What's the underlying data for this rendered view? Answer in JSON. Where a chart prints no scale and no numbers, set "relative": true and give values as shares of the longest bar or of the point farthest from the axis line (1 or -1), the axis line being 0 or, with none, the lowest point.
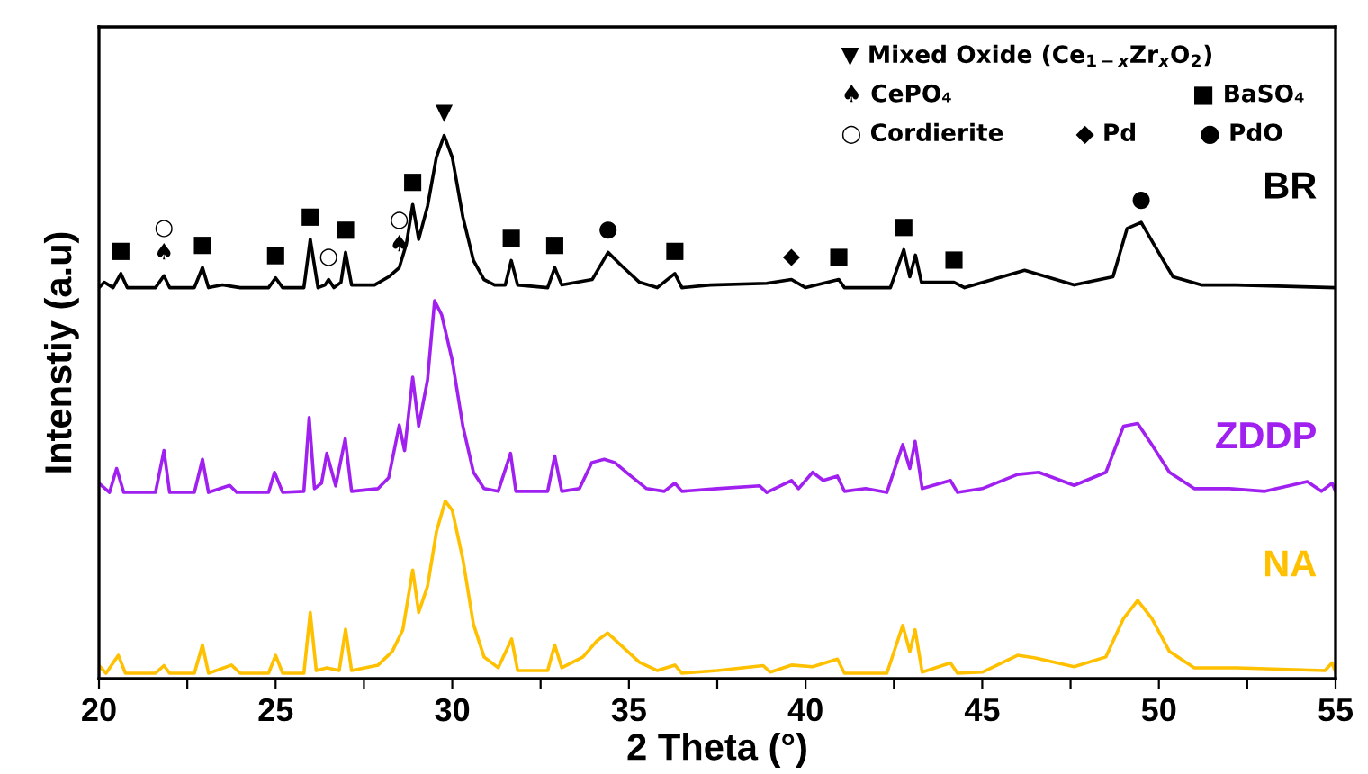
{
  "chart_data": {
    "type": "line",
    "relative": true,
    "xlabel": "2 Theta (°)",
    "ylabel": "Intenstiy (a.u)",
    "legend": false,
    "grid": false,
    "tick_labels": "x",
    "marker": "none",
    "line_style": "solid",
    "xlim": [
      20,
      55
    ],
    "xticks": [
      20,
      {
        "value": 22.5,
        "label": null
      },
      25,
      {
        "value": 27.5,
        "label": null
      },
      30,
      {
        "value": 32.5,
        "label": null
      },
      35,
      {
        "value": 37.5,
        "label": null
      },
      40,
      {
        "value": 42.5,
        "label": null
      },
      45,
      {
        "value": 47.5,
        "label": null
      },
      50,
      {
        "value": 52.5,
        "label": null
      },
      55
    ],
    "series": [
      {
        "name": "BR",
        "color": "#000000",
        "x": [
          20.0,
          20.15,
          20.4,
          20.62,
          20.8,
          21.6,
          21.84,
          22.0,
          22.7,
          22.93,
          23.1,
          23.5,
          24.0,
          24.8,
          25.0,
          25.2,
          25.8,
          25.98,
          26.2,
          26.4,
          26.5,
          26.65,
          26.85,
          26.98,
          27.15,
          27.8,
          28.2,
          28.5,
          28.7,
          28.88,
          29.05,
          29.3,
          29.55,
          29.77,
          30.0,
          30.3,
          30.6,
          30.9,
          31.2,
          31.5,
          31.67,
          31.85,
          32.7,
          32.9,
          33.1,
          33.96,
          34.41,
          34.8,
          35.3,
          35.8,
          36.3,
          36.5,
          37.3,
          38.9,
          39.6,
          40.0,
          40.94,
          41.1,
          42.4,
          42.78,
          42.95,
          43.11,
          43.28,
          44.2,
          44.5,
          46.2,
          47.6,
          48.7,
          49.1,
          49.5,
          49.9,
          50.4,
          51.2,
          52.2,
          55.0
        ],
        "values": [
          0.72,
          0.73,
          0.72,
          0.746,
          0.72,
          0.72,
          0.742,
          0.72,
          0.72,
          0.757,
          0.72,
          0.725,
          0.72,
          0.72,
          0.738,
          0.72,
          0.72,
          0.809,
          0.72,
          0.725,
          0.735,
          0.72,
          0.73,
          0.785,
          0.725,
          0.725,
          0.74,
          0.757,
          0.8,
          0.873,
          0.809,
          0.87,
          0.96,
          1.0,
          0.96,
          0.85,
          0.77,
          0.735,
          0.725,
          0.725,
          0.77,
          0.725,
          0.72,
          0.757,
          0.725,
          0.735,
          0.785,
          0.76,
          0.73,
          0.72,
          0.746,
          0.72,
          0.725,
          0.728,
          0.735,
          0.72,
          0.735,
          0.72,
          0.72,
          0.79,
          0.74,
          0.78,
          0.73,
          0.73,
          0.72,
          0.752,
          0.725,
          0.74,
          0.829,
          0.84,
          0.795,
          0.74,
          0.725,
          0.725,
          0.72
        ]
      },
      {
        "name": "ZDDP",
        "color": "#a020f0",
        "x": [
          20.0,
          20.3,
          20.5,
          20.7,
          21.6,
          21.84,
          22.0,
          22.7,
          22.93,
          23.1,
          23.7,
          23.9,
          24.8,
          24.97,
          25.2,
          25.8,
          25.95,
          26.1,
          26.3,
          26.45,
          26.7,
          26.97,
          27.15,
          27.9,
          28.2,
          28.5,
          28.65,
          28.88,
          29.05,
          29.3,
          29.5,
          29.7,
          30.0,
          30.3,
          30.6,
          30.9,
          31.3,
          31.65,
          31.8,
          32.7,
          32.9,
          33.1,
          33.6,
          33.95,
          34.3,
          34.6,
          35.0,
          35.5,
          36.0,
          36.3,
          36.5,
          37.5,
          38.7,
          38.9,
          39.6,
          39.8,
          40.2,
          40.5,
          40.9,
          41.1,
          41.7,
          42.3,
          42.75,
          42.95,
          43.1,
          43.3,
          44.1,
          44.3,
          45.0,
          46.0,
          46.6,
          47.6,
          48.5,
          49.0,
          49.4,
          49.8,
          50.3,
          51.0,
          52.0,
          53.0,
          54.2,
          54.6,
          54.9,
          55.0
        ],
        "values": [
          0.36,
          0.343,
          0.387,
          0.343,
          0.343,
          0.42,
          0.343,
          0.343,
          0.404,
          0.343,
          0.356,
          0.343,
          0.343,
          0.38,
          0.343,
          0.345,
          0.481,
          0.35,
          0.36,
          0.415,
          0.355,
          0.442,
          0.345,
          0.35,
          0.37,
          0.467,
          0.42,
          0.555,
          0.465,
          0.55,
          0.696,
          0.67,
          0.586,
          0.465,
          0.38,
          0.35,
          0.345,
          0.415,
          0.345,
          0.345,
          0.41,
          0.345,
          0.35,
          0.398,
          0.404,
          0.398,
          0.376,
          0.35,
          0.345,
          0.36,
          0.345,
          0.35,
          0.355,
          0.343,
          0.365,
          0.35,
          0.38,
          0.365,
          0.373,
          0.345,
          0.35,
          0.343,
          0.431,
          0.387,
          0.437,
          0.35,
          0.365,
          0.343,
          0.35,
          0.376,
          0.38,
          0.356,
          0.38,
          0.465,
          0.47,
          0.431,
          0.38,
          0.35,
          0.35,
          0.345,
          0.363,
          0.345,
          0.36,
          0.345
        ]
      },
      {
        "name": "NA",
        "color": "#ffc000",
        "x": [
          20.0,
          20.2,
          20.55,
          20.75,
          21.6,
          21.84,
          22.0,
          22.7,
          22.93,
          23.1,
          23.75,
          24.0,
          24.8,
          25.0,
          25.2,
          25.8,
          25.98,
          26.15,
          26.45,
          26.8,
          26.98,
          27.15,
          27.9,
          28.3,
          28.6,
          28.88,
          29.05,
          29.3,
          29.55,
          29.8,
          30.0,
          30.3,
          30.6,
          30.9,
          31.3,
          31.68,
          31.85,
          32.7,
          32.9,
          33.1,
          33.7,
          34.1,
          34.4,
          34.8,
          35.3,
          35.8,
          36.3,
          36.5,
          37.5,
          38.8,
          39.0,
          39.6,
          40.2,
          40.9,
          41.1,
          42.3,
          42.75,
          42.95,
          43.1,
          43.3,
          44.1,
          44.3,
          45.0,
          46.0,
          46.5,
          47.6,
          48.5,
          49.0,
          49.4,
          49.8,
          50.3,
          51.0,
          52.2,
          54.7,
          54.9,
          55.0
        ],
        "values": [
          0.024,
          0.01,
          0.043,
          0.01,
          0.01,
          0.024,
          0.01,
          0.01,
          0.062,
          0.01,
          0.025,
          0.01,
          0.01,
          0.043,
          0.01,
          0.01,
          0.122,
          0.015,
          0.02,
          0.015,
          0.091,
          0.015,
          0.025,
          0.05,
          0.09,
          0.2,
          0.122,
          0.17,
          0.27,
          0.327,
          0.31,
          0.22,
          0.1,
          0.04,
          0.02,
          0.073,
          0.015,
          0.015,
          0.062,
          0.02,
          0.04,
          0.07,
          0.084,
          0.06,
          0.03,
          0.015,
          0.025,
          0.01,
          0.015,
          0.024,
          0.012,
          0.025,
          0.022,
          0.036,
          0.01,
          0.01,
          0.098,
          0.05,
          0.09,
          0.012,
          0.029,
          0.01,
          0.012,
          0.043,
          0.038,
          0.022,
          0.04,
          0.111,
          0.144,
          0.111,
          0.05,
          0.02,
          0.02,
          0.015,
          0.029,
          0.012
        ]
      }
    ],
    "annotations": [
      {
        "text": "■",
        "x": 20.62,
        "y": 0.746
      },
      {
        "text": "■",
        "x": 22.93,
        "y": 0.757
      },
      {
        "text": "■",
        "x": 25.0,
        "y": 0.738
      },
      {
        "text": "■",
        "x": 25.98,
        "y": 0.809
      },
      {
        "text": "■",
        "x": 26.98,
        "y": 0.785
      },
      {
        "text": "■",
        "x": 28.88,
        "y": 0.873
      },
      {
        "text": "■",
        "x": 31.67,
        "y": 0.77
      },
      {
        "text": "■",
        "x": 32.9,
        "y": 0.757
      },
      {
        "text": "■",
        "x": 36.3,
        "y": 0.746
      },
      {
        "text": "■",
        "x": 40.94,
        "y": 0.735
      },
      {
        "text": "■",
        "x": 42.78,
        "y": 0.79
      },
      {
        "text": "■",
        "x": 44.2,
        "y": 0.73
      },
      {
        "text": "♠",
        "x": 21.84,
        "y": 0.742
      },
      {
        "text": "○",
        "x": 21.84,
        "y": 0.742
      },
      {
        "text": "○",
        "x": 26.5,
        "y": 0.735
      },
      {
        "text": "♠",
        "x": 28.5,
        "y": 0.757
      },
      {
        "text": "○",
        "x": 28.5,
        "y": 0.757
      },
      {
        "text": "▼",
        "x": 29.77,
        "y": 1.0
      },
      {
        "text": "●",
        "x": 34.41,
        "y": 0.785
      },
      {
        "text": "●",
        "x": 49.5,
        "y": 0.84
      },
      {
        "text": "◆",
        "x": 39.6,
        "y": 0.735
      },
      "▼ Mixed Oxide (Ce$_{1−x}$Zr$_{x}$O$_{2}$)",
      "♠ CePO₄",
      "■ BaSO₄",
      "○ Cordierite",
      "◆ Pd",
      "● PdO"
    ]
  }
}
